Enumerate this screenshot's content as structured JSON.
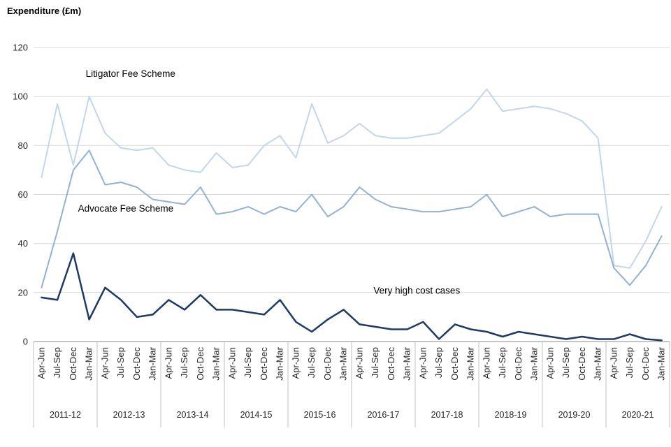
{
  "chart_data": {
    "type": "line",
    "title": "Expenditure (£m)",
    "ylabel": "Expenditure (£m)",
    "ylim": [
      0,
      120
    ],
    "yticks": [
      0,
      20,
      40,
      60,
      80,
      100,
      120
    ],
    "grid": true,
    "legend_position": "inline-annotations",
    "quarter_labels": [
      "Apr-Jun",
      "Jul-Sep",
      "Oct-Dec",
      "Jan-Mar"
    ],
    "year_groups": [
      "2011-12",
      "2012-13",
      "2013-14",
      "2014-15",
      "2015-16",
      "2016-17",
      "2017-18",
      "2018-19",
      "2019-20",
      "2020-21"
    ],
    "series": [
      {
        "name": "Litigator Fee Scheme",
        "color": "#c3d6eb",
        "width": 2,
        "values": [
          67,
          97,
          72,
          100,
          85,
          79,
          78,
          79,
          72,
          70,
          69,
          77,
          71,
          72,
          80,
          84,
          75,
          97,
          81,
          84,
          89,
          84,
          83,
          83,
          84,
          85,
          90,
          95,
          103,
          94,
          95,
          96,
          95,
          93,
          90,
          83,
          31,
          30,
          41,
          55
        ]
      },
      {
        "name": "Advocate Fee Scheme",
        "color": "#92b1d6",
        "width": 2,
        "values": [
          22,
          45,
          70,
          78,
          64,
          65,
          63,
          58,
          57,
          56,
          63,
          52,
          53,
          55,
          52,
          55,
          53,
          60,
          51,
          55,
          63,
          58,
          55,
          54,
          53,
          53,
          54,
          55,
          60,
          51,
          53,
          55,
          51,
          52,
          52,
          52,
          30,
          23,
          31,
          43
        ]
      },
      {
        "name": "Very high cost cases",
        "color": "#1f3a63",
        "width": 2.5,
        "values": [
          18,
          17,
          36,
          9,
          22,
          17,
          10,
          11,
          17,
          13,
          19,
          13,
          13,
          12,
          11,
          17,
          8,
          4,
          9,
          13,
          7,
          6,
          5,
          5,
          8,
          1,
          7,
          5,
          4,
          2,
          4,
          3,
          2,
          1,
          2,
          1,
          1,
          3,
          1,
          0.5
        ]
      }
    ],
    "annotations": [
      {
        "text": "Litigator Fee Scheme",
        "col": 6.1,
        "val": 108
      },
      {
        "text": "Advocate Fee Scheme",
        "col": 5.8,
        "val": 53
      },
      {
        "text": "Very high cost cases",
        "col": 24.1,
        "val": 19.5
      }
    ],
    "colors": {
      "grid": "#d9d9d9",
      "axis": "#898989",
      "separator": "#bfbfbf",
      "text": "#262626",
      "annotation_text": "#000000"
    }
  }
}
